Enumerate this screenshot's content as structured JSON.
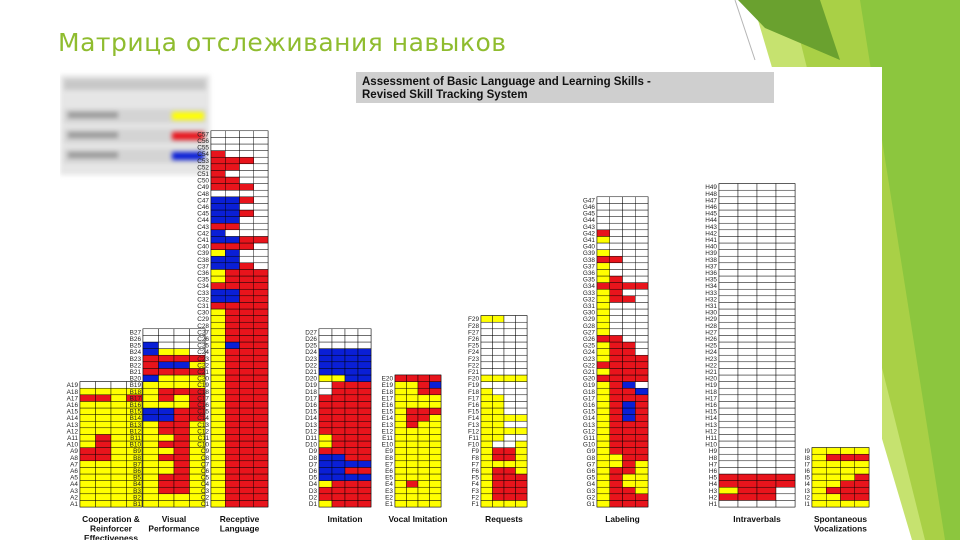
{
  "slide": {
    "title": "Матрица отслеживания навыков",
    "accent_colors": [
      "#8cc63e",
      "#a9d046",
      "#6aa12f",
      "#c6e26f"
    ]
  },
  "chart_data": {
    "type": "heatmap",
    "title": "Assessment of Basic Language and Learning Skills - Revised Skill Tracking System",
    "title_lines": [
      "Assessment of Basic Language and Learning Skills -",
      "Revised Skill Tracking System"
    ],
    "colors": {
      "Y": "#ffff00",
      "R": "#e8141c",
      "B": "#0a1fd6",
      "W": "#ffffff"
    },
    "columns_per_skill": 4,
    "domains": [
      {
        "code": "A",
        "label": [
          "Cooperation &",
          "Reinforcer",
          "Effectiveness"
        ],
        "count": 19,
        "rows": {
          "1": "YYYY",
          "2": "YYYY",
          "3": "YYYY",
          "4": "YYYY",
          "5": "YYYY",
          "6": "YYYY",
          "7": "YYYY",
          "8": "RRYY",
          "9": "RRYY",
          "10": "YRYY",
          "11": "YRYY",
          "12": "YYYY",
          "13": "YYYY",
          "14": "YYYY",
          "15": "YYYY",
          "16": "YYYY",
          "17": "RRYR",
          "18": "YYYY",
          "19": "WWWW"
        }
      },
      {
        "code": "B",
        "label": [
          "Visual",
          "Performance"
        ],
        "count": 27,
        "rows": {
          "1": "YYYY",
          "2": "YYYY",
          "3": "YRRY",
          "4": "YRRY",
          "5": "YRRY",
          "6": "YYRY",
          "7": "YYRY",
          "8": "YRRY",
          "9": "YYRY",
          "10": "YRRY",
          "11": "YYRY",
          "12": "YRRY",
          "13": "YRRY",
          "14": "BBRR",
          "15": "BBRR",
          "16": "YYYR",
          "17": "YRYR",
          "18": "YRRR",
          "19": "YYYY",
          "20": "BYYY",
          "21": "RRRR",
          "22": "RBBY",
          "23": "RRRR",
          "24": "BYYW",
          "25": "BWWW",
          "26": "WWWW",
          "27": "WWWW"
        }
      },
      {
        "code": "C",
        "label": [
          "Receptive",
          "Language"
        ],
        "count": 57,
        "rows": {
          "1": "YRRR",
          "2": "YRRR",
          "3": "YRRR",
          "4": "YRRR",
          "5": "YRRR",
          "6": "YRRR",
          "7": "YRRR",
          "8": "YRRR",
          "9": "YRRR",
          "10": "YRRR",
          "11": "YRRR",
          "12": "YRRR",
          "13": "YRRR",
          "14": "YRRR",
          "15": "YRRR",
          "16": "YRRR",
          "17": "YRRR",
          "18": "YRRR",
          "19": "YRRR",
          "20": "YRRR",
          "21": "YRRR",
          "22": "YRRR",
          "23": "YRRR",
          "24": "YRRR",
          "25": "YBRR",
          "26": "YRRR",
          "27": "YRRR",
          "28": "YRRR",
          "29": "YRRR",
          "30": "YRRR",
          "31": "RRRR",
          "32": "BBRR",
          "33": "BBRR",
          "34": "RRRR",
          "35": "YRRR",
          "36": "YRRR",
          "37": "BBRW",
          "38": "BBWW",
          "39": "YBWW",
          "40": "RRRW",
          "41": "BBRR",
          "42": "BWWW",
          "43": "RRWW",
          "44": "BBWW",
          "45": "BBRW",
          "46": "BBWW",
          "47": "BBRW",
          "48": "WWWW",
          "49": "RRRW",
          "50": "RRWW",
          "51": "RWWW",
          "52": "RRWW",
          "53": "RRRW",
          "54": "RWWW",
          "55": "WWWW",
          "56": "WWWW",
          "57": "WWWW"
        }
      },
      {
        "code": "D",
        "label": [
          "Imitation"
        ],
        "count": 27,
        "rows": {
          "1": "YRRR",
          "2": "RRRR",
          "3": "RRRR",
          "4": "YRRR",
          "5": "BBBB",
          "6": "BBRR",
          "7": "BBBB",
          "8": "BBRR",
          "9": "RRRR",
          "10": "YRRR",
          "11": "YRRR",
          "12": "RRRR",
          "13": "RRRR",
          "14": "RRRR",
          "15": "RRRR",
          "16": "RRRR",
          "17": "RRRR",
          "18": "WRRR",
          "19": "WRRR",
          "20": "YYBB",
          "21": "BBBB",
          "22": "BBBB",
          "23": "BBBB",
          "24": "BBBB",
          "25": "WWWW",
          "26": "WWWW",
          "27": "WWWW"
        }
      },
      {
        "code": "E",
        "label": [
          "Vocal Imitation"
        ],
        "count": 20,
        "rows": {
          "1": "YYYY",
          "2": "YYYY",
          "3": "YYYY",
          "4": "YRYY",
          "5": "YYYY",
          "6": "YYYY",
          "7": "YYYY",
          "8": "YYYY",
          "9": "YYYY",
          "10": "YYYY",
          "11": "YYYY",
          "12": "YYYY",
          "13": "YRYY",
          "14": "YRRY",
          "15": "YRRR",
          "16": "YYYY",
          "17": "YYYY",
          "18": "YYRR",
          "19": "YYRB",
          "20": "RRRR"
        }
      },
      {
        "code": "F",
        "label": [
          "Requests"
        ],
        "count": 29,
        "rows": {
          "1": "YYYY",
          "2": "YRRR",
          "3": "YRRR",
          "4": "YRRR",
          "5": "YRRR",
          "6": "YRRY",
          "7": "YYYY",
          "8": "YRRY",
          "9": "YRRY",
          "10": "YWWY",
          "11": "YYWW",
          "12": "YYYY",
          "13": "YYWW",
          "14": "YYYY",
          "15": "YYWW",
          "16": "YYWW",
          "17": "YYWW",
          "18": "YWWW",
          "19": "WWWW",
          "20": "YYYY",
          "21": "WWWW",
          "22": "WWWW",
          "23": "WWWW",
          "24": "WWWW",
          "25": "WWWW",
          "26": "WWWW",
          "27": "WWWW",
          "28": "WWWW",
          "29": "YYWW"
        }
      },
      {
        "code": "G",
        "label": [
          "Labeling"
        ],
        "count": 47,
        "rows": {
          "1": "YRRR",
          "2": "YRRR",
          "3": "YRRY",
          "4": "YRYY",
          "5": "YRYY",
          "6": "YRRY",
          "7": "YYRY",
          "8": "YYRR",
          "9": "YRRR",
          "10": "YRRR",
          "11": "YRRR",
          "12": "YRRR",
          "13": "YRRR",
          "14": "YRBR",
          "15": "YRBR",
          "16": "YRBR",
          "17": "YRRR",
          "18": "YRRB",
          "19": "YRBW",
          "20": "RRRR",
          "21": "YRRR",
          "22": "RRRR",
          "23": "YRRR",
          "24": "YRRW",
          "25": "YRRW",
          "26": "RRWW",
          "27": "YWWW",
          "28": "YWWW",
          "29": "YWWW",
          "30": "YWWW",
          "31": "YWWW",
          "32": "YRRW",
          "33": "YRWW",
          "34": "RRRR",
          "35": "YRWW",
          "36": "YWWW",
          "37": "YWWW",
          "38": "RRWW",
          "39": "YWWW",
          "40": "WWWW",
          "41": "YWWW",
          "42": "RWWW",
          "43": "WWWW",
          "44": "WWWW",
          "45": "WWWW",
          "46": "WWWW",
          "47": "WWWW"
        }
      },
      {
        "code": "H",
        "label": [
          "Intraverbals"
        ],
        "count": 49,
        "rows": {
          "1": "WWWW",
          "2": "RRRW",
          "3": "YRRW",
          "4": "RRRR",
          "5": "RRRR",
          "6": "WWWW",
          "7": "WWWW",
          "8": "WWWW",
          "9": "WWWW",
          "10": "WWWW",
          "11": "WWWW",
          "12": "WWWW",
          "13": "WWWW",
          "14": "WWWW",
          "15": "WWWW",
          "16": "WWWW",
          "17": "WWWW",
          "18": "WWWW",
          "19": "WWWW",
          "20": "WWWW",
          "21": "WWWW",
          "22": "WWWW",
          "23": "WWWW",
          "24": "WWWW",
          "25": "WWWW",
          "26": "WWWW",
          "27": "WWWW",
          "28": "WWWW",
          "29": "WWWW",
          "30": "WWWW",
          "31": "WWWW",
          "32": "WWWW",
          "33": "WWWW",
          "34": "WWWW",
          "35": "WWWW",
          "36": "WWWW",
          "37": "WWWW",
          "38": "WWWW",
          "39": "WWWW",
          "40": "WWWW",
          "41": "WWWW",
          "42": "WWWW",
          "43": "WWWW",
          "44": "WWWW",
          "45": "WWWW",
          "46": "WWWW",
          "47": "WWWW",
          "48": "WWWW",
          "49": "WWWW"
        }
      },
      {
        "code": "I",
        "label": [
          "Spontaneous",
          "Vocalizations"
        ],
        "count": 9,
        "rows": {
          "1": "YYYY",
          "2": "YYRR",
          "3": "YRRR",
          "4": "YYRR",
          "5": "YYYR",
          "6": "YYYY",
          "7": "YYYY",
          "8": "YRRR",
          "9": "YYYY"
        }
      }
    ],
    "legend": {
      "entries": [
        "",
        "",
        ""
      ],
      "colors": [
        "#ffff00",
        "#e8141c",
        "#0a1fd6"
      ]
    }
  }
}
